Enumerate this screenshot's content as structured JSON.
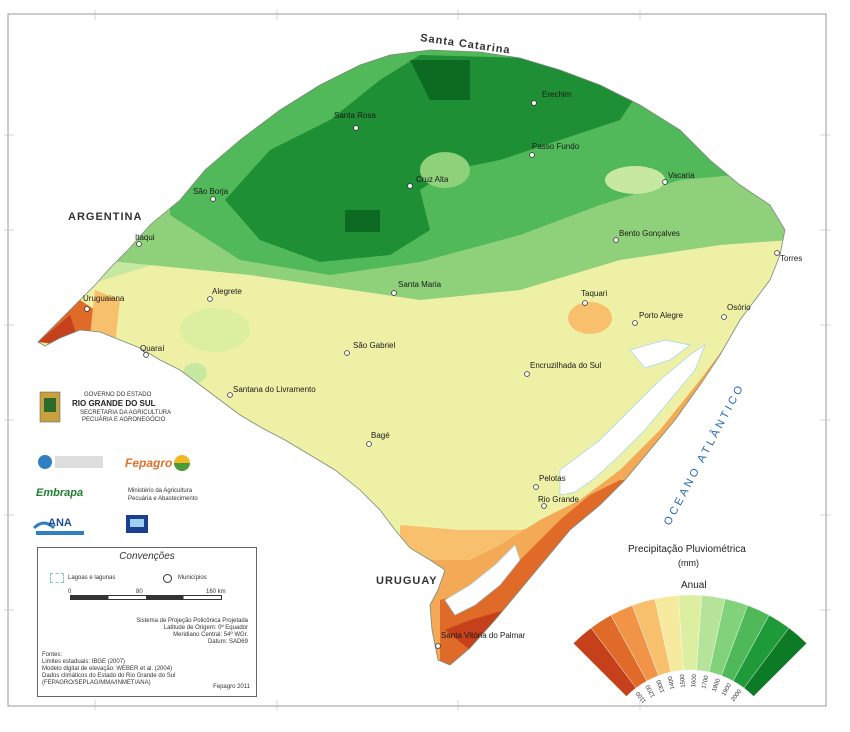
{
  "map": {
    "neighbors": {
      "north": "Santa Catarina",
      "west": "ARGENTINA",
      "south": "URUGUAY"
    },
    "ocean": "OCEANO ATLÂNTICO",
    "cities": [
      {
        "name": "Erechim"
      },
      {
        "name": "Santa Rosa"
      },
      {
        "name": "Passo Fundo"
      },
      {
        "name": "São Borja"
      },
      {
        "name": "Cruz Alta"
      },
      {
        "name": "Vacaria"
      },
      {
        "name": "Itaqui"
      },
      {
        "name": "Bento Gonçalves"
      },
      {
        "name": "Torres"
      },
      {
        "name": "Uruguaiana"
      },
      {
        "name": "Alegrete"
      },
      {
        "name": "Santa Maria"
      },
      {
        "name": "Taquari"
      },
      {
        "name": "Osório"
      },
      {
        "name": "Porto Alegre"
      },
      {
        "name": "Quaraí"
      },
      {
        "name": "São Gabriel"
      },
      {
        "name": "Encruzilhada do Sul"
      },
      {
        "name": "Santana do Livramento"
      },
      {
        "name": "Bagé"
      },
      {
        "name": "Pelotas"
      },
      {
        "name": "Rio Grande"
      },
      {
        "name": "Santa Vitória do Palmar"
      }
    ]
  },
  "legend": {
    "title": "Precipitação Pluviométrica",
    "unit": "(mm)",
    "subtitle": "Anual",
    "classes": [
      "1100",
      "1200",
      "1300",
      "1400",
      "1500",
      "1600",
      "1700",
      "1800",
      "1900",
      "2000"
    ],
    "colors": [
      "#c7401c",
      "#e06a28",
      "#f29447",
      "#f8c06c",
      "#f6ea9e",
      "#dcefa0",
      "#b6e39a",
      "#82d17b",
      "#4fb95a",
      "#1e9a38",
      "#0d7a26"
    ]
  },
  "conventions": {
    "title": "Convenções",
    "lagoons": "Lagoas e lagunas",
    "municipalities": "Municípios",
    "scale": [
      "0",
      "80",
      "160 km"
    ],
    "projection": [
      "Sistema de Projeção Policônica Projetada",
      "Latitude de Origem: 0º Equador",
      "Meridiano Central: 54º WGr.",
      "Datum: SAD69"
    ],
    "sources_label": "Fontes:",
    "sources": [
      "Limites estaduais: IBGE (2007)",
      "Modelo digital de elevação: WEBER et al. (2004)",
      "Dados climáticos do Estado do Rio Grande do Sul",
      "(FEPAGRO/SEPLAG/MMA/INMET/ANA)"
    ],
    "credit": "Fepagro 2011"
  },
  "logos": {
    "state": [
      "GOVERNO DO ESTADO",
      "RIO GRANDE DO SUL",
      "SECRETARIA DA AGRICULTURA",
      "PECUÁRIA E AGRONEGÓCIO"
    ],
    "fepagro": "Fepagro",
    "embrapa": "Embrapa",
    "ministry": [
      "Ministério da Agricultura",
      "Pecuária e Abastecimento"
    ],
    "ana": "ANA"
  },
  "colors": {
    "dark_green": "#1e8f34",
    "mid_green": "#52b95a",
    "light_green": "#8fd17a",
    "pale_green": "#c6e8a0",
    "yellow": "#eef0a6",
    "orange": "#f3a955",
    "red": "#d9532a",
    "water": "#ffffff"
  }
}
